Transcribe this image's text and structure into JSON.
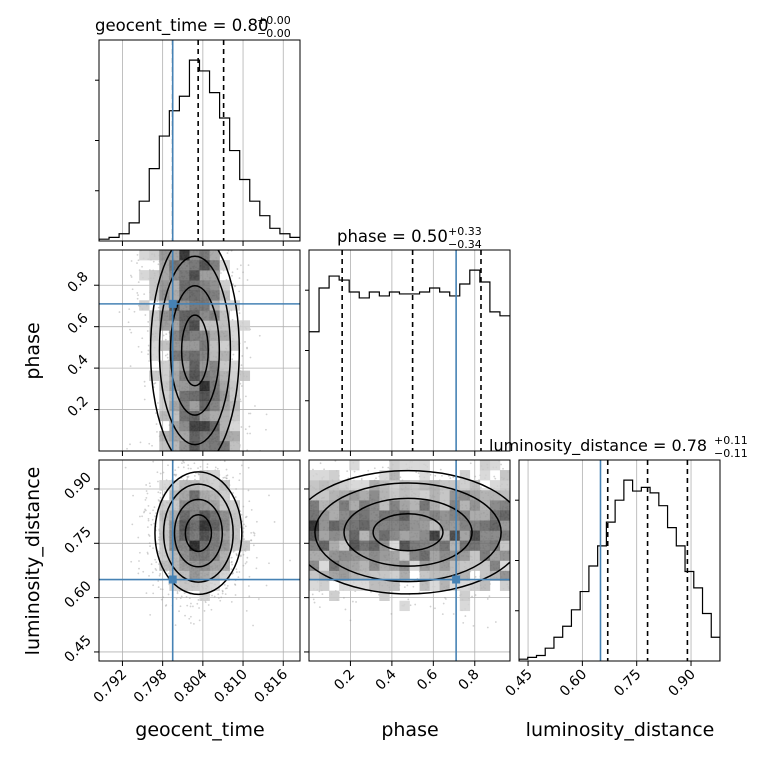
{
  "colors": {
    "truth": "#4682b4",
    "hist": "#000000",
    "quantile": "#000000",
    "grid": "#b0b0b0",
    "samples": "#9a9a9a"
  },
  "titles": {
    "geocent_time": {
      "main": "geocent_time = 0.80",
      "sup": "+0.00",
      "sub": "−0.00"
    },
    "phase": {
      "main": "phase = 0.50",
      "sup": "+0.33",
      "sub": "−0.34"
    },
    "luminosity_distance": {
      "main": "luminosity_distance = 0.78",
      "sup": "+0.11",
      "sub": "−0.11"
    }
  },
  "chart_data": {
    "type": "corner",
    "parameters": [
      "geocent_time",
      "phase",
      "luminosity_distance"
    ],
    "axis_labels": {
      "x": [
        "geocent_time",
        "phase",
        "luminosity_distance"
      ],
      "y": [
        "phase",
        "luminosity_distance"
      ]
    },
    "ranges": {
      "geocent_time": [
        0.7885,
        0.8185
      ],
      "phase": [
        0.0,
        0.97
      ],
      "luminosity_distance": [
        0.425,
        0.98
      ]
    },
    "ticks": {
      "geocent_time": [
        "0.792",
        "0.798",
        "0.804",
        "0.810",
        "0.816"
      ],
      "phase": [
        "0.2",
        "0.4",
        "0.6",
        "0.8"
      ],
      "luminosity_distance": [
        "0.45",
        "0.60",
        "0.75",
        "0.90"
      ]
    },
    "truths": {
      "geocent_time": 0.7995,
      "phase": 0.71,
      "luminosity_distance": 0.65
    },
    "quantiles": {
      "geocent_time": [
        0.7995,
        0.8033,
        0.8071
      ],
      "phase": [
        0.16,
        0.5,
        0.83
      ],
      "luminosity_distance": [
        0.67,
        0.78,
        0.89
      ]
    },
    "histograms": {
      "geocent_time": {
        "range": [
          0.7885,
          0.8185
        ],
        "counts": [
          1,
          2,
          4,
          10,
          22,
          40,
          58,
          72,
          80,
          100,
          94,
          82,
          68,
          50,
          34,
          22,
          14,
          7,
          4,
          2
        ]
      },
      "phase": {
        "range": [
          0.0,
          0.97
        ],
        "counts": [
          60,
          82,
          88,
          86,
          80,
          77,
          80,
          78,
          80,
          79,
          79,
          80,
          82,
          80,
          78,
          84,
          91,
          85,
          70,
          68
        ]
      },
      "luminosity_distance": {
        "range": [
          0.425,
          0.98
        ],
        "counts": [
          1,
          2,
          3,
          7,
          13,
          19,
          28,
          38,
          52,
          63,
          76,
          88,
          99,
          93,
          95,
          92,
          85,
          73,
          63,
          49,
          40,
          26,
          13
        ]
      }
    },
    "grid": true
  }
}
